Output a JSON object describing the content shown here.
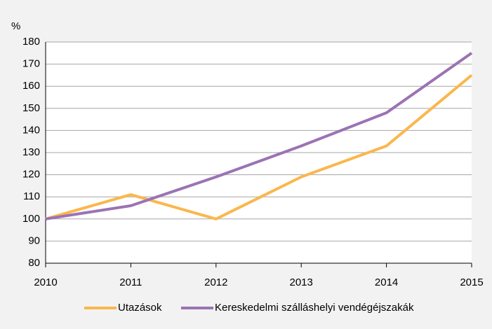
{
  "chart_data": {
    "type": "line",
    "y_label": "%",
    "x": [
      2010,
      2011,
      2012,
      2013,
      2014,
      2015
    ],
    "xlim": [
      2010,
      2015
    ],
    "xticks": [
      2010,
      2011,
      2012,
      2013,
      2014,
      2015
    ],
    "ylim": [
      80,
      180
    ],
    "yticks": [
      80,
      90,
      100,
      110,
      120,
      130,
      140,
      150,
      160,
      170,
      180
    ],
    "grid": true,
    "legend": "bottom",
    "series": [
      {
        "name": "Utazások",
        "color": "#fab74d",
        "values": [
          100,
          111,
          100,
          119,
          133,
          165
        ]
      },
      {
        "name": "Kereskedelmi szálláshelyi vendégéjszakák",
        "color": "#9b73b3",
        "values": [
          100,
          106,
          119,
          133,
          148,
          175
        ]
      }
    ]
  }
}
